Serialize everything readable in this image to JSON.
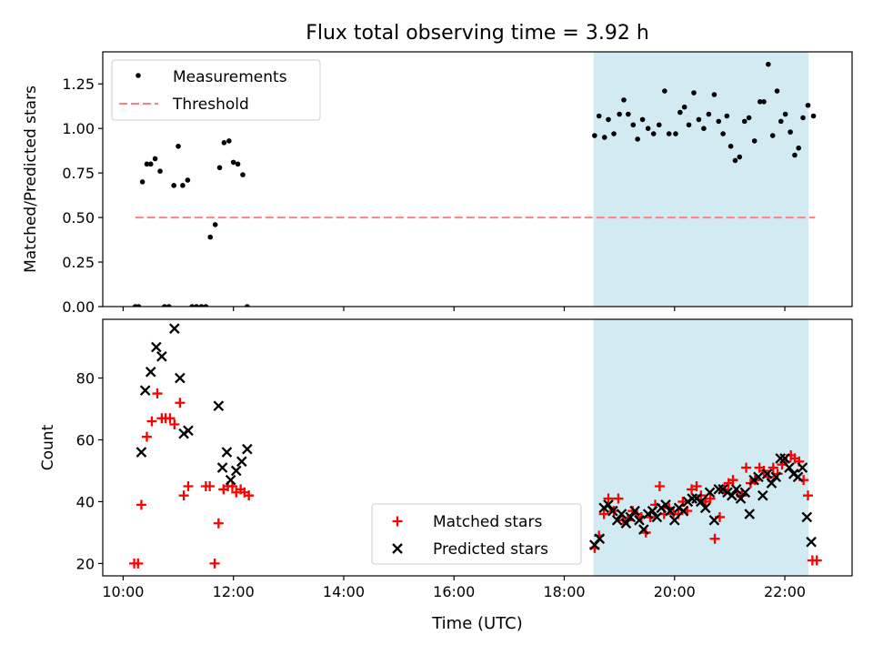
{
  "figure": {
    "title": "Flux total observing time = 3.92 h",
    "xlabel": "Time (UTC)",
    "xticks": [
      10,
      12,
      14,
      16,
      18,
      20,
      22
    ],
    "xtick_labels": [
      "10:00",
      "12:00",
      "14:00",
      "16:00",
      "18:00",
      "20:00",
      "22:00"
    ],
    "xlim": [
      9.63,
      23.22
    ],
    "shade_range": [
      18.53,
      22.43
    ],
    "shade_color": "#add8e6"
  },
  "chart_data": [
    {
      "type": "scatter",
      "ylabel": "Matched/Predicted stars",
      "ylim": [
        0,
        1.43
      ],
      "yticks": [
        0.0,
        0.25,
        0.5,
        0.75,
        1.0,
        1.25
      ],
      "ytick_labels": [
        "0.00",
        "0.25",
        "0.50",
        "0.75",
        "1.00",
        "1.25"
      ],
      "legend_position": "top-left",
      "series": [
        {
          "name": "Measurements",
          "color": "#000000",
          "marker": "dot",
          "x": [
            10.22,
            10.28,
            10.35,
            10.43,
            10.5,
            10.58,
            10.67,
            10.75,
            10.83,
            10.92,
            11.0,
            11.08,
            11.17,
            11.25,
            11.33,
            11.42,
            11.5,
            11.58,
            11.67,
            11.75,
            11.83,
            11.92,
            12.0,
            12.08,
            12.17,
            12.25,
            18.55,
            18.63,
            18.73,
            18.8,
            18.9,
            19.0,
            19.08,
            19.16,
            19.25,
            19.33,
            19.42,
            19.52,
            19.62,
            19.72,
            19.82,
            19.9,
            20.02,
            20.1,
            20.18,
            20.26,
            20.35,
            20.44,
            20.53,
            20.62,
            20.72,
            20.8,
            20.88,
            20.95,
            21.02,
            21.1,
            21.18,
            21.27,
            21.35,
            21.45,
            21.55,
            21.62,
            21.7,
            21.78,
            21.86,
            21.93,
            22.01,
            22.1,
            22.18,
            22.25,
            22.33,
            22.42,
            22.52
          ],
          "y": [
            0.0,
            0.0,
            0.7,
            0.8,
            0.8,
            0.83,
            0.76,
            0.0,
            0.0,
            0.68,
            0.9,
            0.68,
            0.71,
            0.0,
            0.0,
            0.0,
            0.0,
            0.39,
            0.46,
            0.78,
            0.92,
            0.93,
            0.81,
            0.8,
            0.74,
            0.0,
            0.96,
            1.07,
            0.95,
            1.05,
            0.97,
            1.08,
            1.16,
            1.08,
            1.02,
            0.94,
            1.05,
            1.0,
            0.97,
            1.02,
            1.21,
            0.97,
            0.97,
            1.09,
            1.12,
            1.02,
            1.2,
            1.05,
            1.0,
            1.08,
            1.19,
            1.04,
            0.97,
            1.07,
            0.9,
            0.82,
            0.84,
            1.04,
            1.06,
            0.93,
            1.15,
            1.15,
            1.36,
            0.96,
            1.21,
            1.04,
            1.08,
            0.98,
            0.85,
            0.89,
            1.06,
            1.13,
            1.07
          ]
        },
        {
          "name": "Threshold",
          "color": "#ff8080",
          "style": "dashed",
          "x": [
            10.22,
            22.55
          ],
          "y": [
            0.5,
            0.5
          ]
        }
      ]
    },
    {
      "type": "scatter",
      "ylabel": "Count",
      "ylim": [
        16,
        99
      ],
      "yticks": [
        20,
        40,
        60,
        80
      ],
      "ytick_labels": [
        "20",
        "40",
        "60",
        "80"
      ],
      "legend_position": "lower-center",
      "series": [
        {
          "name": "Matched stars",
          "color": "#ff0000",
          "marker": "plus",
          "x": [
            10.2,
            10.27,
            10.33,
            10.43,
            10.52,
            10.62,
            10.7,
            10.77,
            10.85,
            10.93,
            11.03,
            11.1,
            11.18,
            11.5,
            11.57,
            11.66,
            11.73,
            11.82,
            11.9,
            11.98,
            12.05,
            12.13,
            12.2,
            12.28,
            18.55,
            18.63,
            18.72,
            18.8,
            18.9,
            18.98,
            19.07,
            19.15,
            19.24,
            19.32,
            19.4,
            19.48,
            19.56,
            19.65,
            19.73,
            19.81,
            19.9,
            19.98,
            20.07,
            20.15,
            20.23,
            20.31,
            20.4,
            20.48,
            20.56,
            20.65,
            20.73,
            20.82,
            20.9,
            20.98,
            21.06,
            21.14,
            21.22,
            21.3,
            21.38,
            21.46,
            21.54,
            21.62,
            21.71,
            21.79,
            21.87,
            21.95,
            22.03,
            22.11,
            22.18,
            22.26,
            22.34,
            22.42,
            22.5,
            22.58
          ],
          "y": [
            20,
            20,
            39,
            61,
            66,
            75,
            67,
            67,
            67,
            65,
            72,
            42,
            45,
            45,
            45,
            20,
            33,
            44,
            45,
            45,
            43,
            44,
            43,
            42,
            25,
            29,
            36,
            41,
            37,
            41,
            34,
            34,
            37,
            36,
            35,
            30,
            35,
            39,
            45,
            36,
            38,
            36,
            36,
            40,
            37,
            44,
            45,
            42,
            40,
            41,
            28,
            35,
            44,
            46,
            47,
            43,
            42,
            51,
            46,
            47,
            51,
            50,
            48,
            51,
            49,
            52,
            53,
            55,
            54,
            53,
            47,
            42,
            21,
            21
          ]
        },
        {
          "name": "Predicted stars",
          "color": "#000000",
          "marker": "x",
          "x": [
            10.33,
            10.4,
            10.5,
            10.6,
            10.7,
            10.93,
            11.03,
            11.1,
            11.18,
            11.73,
            11.8,
            11.88,
            11.95,
            12.05,
            12.15,
            12.25,
            18.55,
            18.64,
            18.72,
            18.8,
            18.88,
            18.96,
            19.04,
            19.12,
            19.2,
            19.28,
            19.36,
            19.44,
            19.52,
            19.6,
            19.68,
            19.76,
            19.84,
            19.92,
            20.0,
            20.08,
            20.16,
            20.24,
            20.32,
            20.4,
            20.48,
            20.56,
            20.64,
            20.72,
            20.8,
            20.88,
            20.96,
            21.04,
            21.12,
            21.2,
            21.28,
            21.36,
            21.44,
            21.52,
            21.6,
            21.68,
            21.76,
            21.84,
            21.92,
            22.0,
            22.08,
            22.16,
            22.24,
            22.32,
            22.4,
            22.48
          ],
          "y": [
            56,
            76,
            82,
            90,
            87,
            96,
            80,
            62,
            63,
            71,
            51,
            56,
            47,
            50,
            53,
            57,
            26,
            28,
            38,
            39,
            37,
            34,
            36,
            33,
            35,
            37,
            34,
            31,
            36,
            37,
            35,
            38,
            39,
            37,
            34,
            38,
            37,
            40,
            41,
            41,
            40,
            38,
            43,
            34,
            44,
            44,
            43,
            42,
            44,
            41,
            43,
            36,
            47,
            48,
            42,
            49,
            46,
            48,
            54,
            54,
            51,
            49,
            48,
            51,
            35,
            27
          ]
        }
      ]
    }
  ]
}
